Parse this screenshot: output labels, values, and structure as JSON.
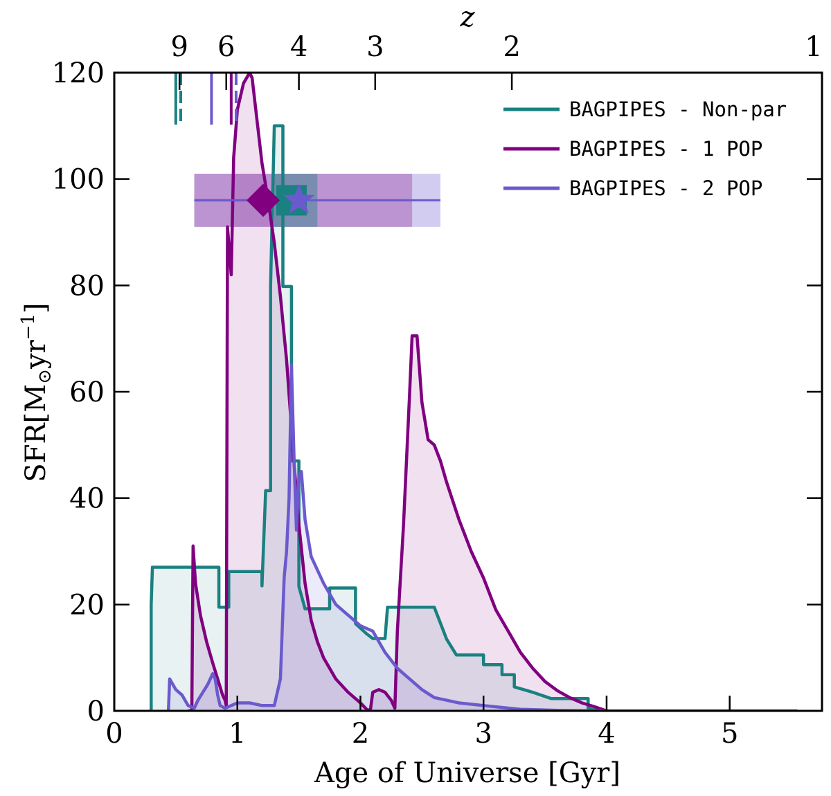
{
  "chart_data": {
    "type": "line",
    "xlabel": "Age of Universe [Gyr]",
    "ylabel": "SFR",
    "ylabel_unit_open": "[M",
    "ylabel_unit_sub": "⊙",
    "ylabel_unit_mid": "yr",
    "ylabel_unit_sup": "−1",
    "ylabel_unit_close": "]",
    "top_axis_label": "z",
    "xlim": [
      0,
      5.75
    ],
    "ylim": [
      0,
      120
    ],
    "x_ticks": [
      "0",
      "1",
      "2",
      "3",
      "4",
      "5"
    ],
    "x_tick_values": [
      0,
      1,
      2,
      3,
      4,
      5
    ],
    "y_ticks": [
      "0",
      "20",
      "40",
      "60",
      "80",
      "100",
      "120"
    ],
    "y_tick_values": [
      0,
      20,
      40,
      60,
      80,
      100,
      120
    ],
    "top_ticks": [
      {
        "label": "9",
        "age": 0.53
      },
      {
        "label": "6",
        "age": 0.91
      },
      {
        "label": "4",
        "age": 1.5
      },
      {
        "label": "3",
        "age": 2.12
      },
      {
        "label": "2",
        "age": 3.23
      },
      {
        "label": "1",
        "age": 5.75
      }
    ],
    "colors": {
      "nonpar": "#1a8080",
      "pop1": "#800080",
      "pop2": "#6a5acd"
    },
    "series": [
      {
        "name": "BAGPIPES - Non-par",
        "key": "nonpar",
        "style": "step",
        "points": [
          [
            0.3,
            0
          ],
          [
            0.3,
            20
          ],
          [
            0.31,
            27
          ],
          [
            0.85,
            27
          ],
          [
            0.85,
            19.5
          ],
          [
            0.93,
            19.5
          ],
          [
            0.93,
            26.2
          ],
          [
            1.2,
            26.2
          ],
          [
            1.2,
            23.5
          ],
          [
            1.23,
            41.4
          ],
          [
            1.27,
            41.4
          ],
          [
            1.27,
            79.8
          ],
          [
            1.3,
            110
          ],
          [
            1.37,
            110
          ],
          [
            1.37,
            79.8
          ],
          [
            1.44,
            79.8
          ],
          [
            1.44,
            47
          ],
          [
            1.5,
            47
          ],
          [
            1.5,
            23.4
          ],
          [
            1.55,
            19.2
          ],
          [
            1.75,
            19.2
          ],
          [
            1.75,
            23.1
          ],
          [
            1.96,
            23.1
          ],
          [
            1.96,
            16.4
          ],
          [
            2.05,
            14.5
          ],
          [
            2.1,
            13.6
          ],
          [
            2.2,
            13.6
          ],
          [
            2.22,
            19.5
          ],
          [
            2.6,
            19.5
          ],
          [
            2.7,
            13.5
          ],
          [
            2.78,
            10.5
          ],
          [
            3.0,
            10.5
          ],
          [
            3.0,
            8.7
          ],
          [
            3.15,
            8.7
          ],
          [
            3.15,
            6.8
          ],
          [
            3.25,
            6.8
          ],
          [
            3.25,
            4.5
          ],
          [
            3.4,
            3.5
          ],
          [
            3.55,
            2.3
          ],
          [
            3.7,
            2.3
          ],
          [
            3.85,
            2.3
          ],
          [
            3.85,
            0.5
          ],
          [
            3.9,
            0.2
          ],
          [
            4.0,
            0
          ]
        ]
      },
      {
        "name": "BAGPIPES - 1 POP",
        "key": "pop1",
        "style": "line",
        "points": [
          [
            0.6,
            0
          ],
          [
            0.63,
            0
          ],
          [
            0.64,
            31
          ],
          [
            0.66,
            24
          ],
          [
            0.7,
            18
          ],
          [
            0.75,
            13
          ],
          [
            0.8,
            9
          ],
          [
            0.84,
            6
          ],
          [
            0.88,
            3
          ],
          [
            0.9,
            2
          ],
          [
            0.91,
            1
          ],
          [
            0.92,
            91
          ],
          [
            0.95,
            82
          ],
          [
            0.97,
            104
          ],
          [
            1.0,
            113
          ],
          [
            1.05,
            118
          ],
          [
            1.1,
            120
          ],
          [
            1.12,
            119
          ],
          [
            1.15,
            113
          ],
          [
            1.2,
            103
          ],
          [
            1.25,
            96
          ],
          [
            1.3,
            88
          ],
          [
            1.35,
            78
          ],
          [
            1.4,
            66
          ],
          [
            1.45,
            50
          ],
          [
            1.5,
            35
          ],
          [
            1.55,
            24
          ],
          [
            1.6,
            17
          ],
          [
            1.65,
            13
          ],
          [
            1.7,
            10
          ],
          [
            1.8,
            6
          ],
          [
            1.9,
            3.5
          ],
          [
            2.0,
            1.5
          ],
          [
            2.05,
            0.3
          ],
          [
            2.08,
            0
          ],
          [
            2.1,
            3.5
          ],
          [
            2.15,
            4
          ],
          [
            2.2,
            3.5
          ],
          [
            2.25,
            2
          ],
          [
            2.28,
            0.5
          ],
          [
            2.3,
            15
          ],
          [
            2.35,
            35
          ],
          [
            2.4,
            60
          ],
          [
            2.42,
            70.5
          ],
          [
            2.46,
            70.5
          ],
          [
            2.5,
            58
          ],
          [
            2.55,
            51
          ],
          [
            2.6,
            50
          ],
          [
            2.65,
            47
          ],
          [
            2.7,
            43
          ],
          [
            2.8,
            36
          ],
          [
            2.9,
            30
          ],
          [
            3.0,
            25
          ],
          [
            3.1,
            19
          ],
          [
            3.2,
            15
          ],
          [
            3.3,
            11
          ],
          [
            3.4,
            8
          ],
          [
            3.5,
            5.5
          ],
          [
            3.6,
            3.8
          ],
          [
            3.7,
            2.5
          ],
          [
            3.8,
            1.5
          ],
          [
            3.9,
            0.8
          ],
          [
            4.0,
            0
          ]
        ]
      },
      {
        "name": "BAGPIPES - 2 POP",
        "key": "pop2",
        "style": "line",
        "points": [
          [
            0.44,
            0
          ],
          [
            0.45,
            6
          ],
          [
            0.5,
            4
          ],
          [
            0.55,
            3
          ],
          [
            0.6,
            1
          ],
          [
            0.65,
            0.5
          ],
          [
            0.68,
            2
          ],
          [
            0.72,
            3.5
          ],
          [
            0.76,
            5
          ],
          [
            0.8,
            7
          ],
          [
            0.82,
            6
          ],
          [
            0.84,
            3
          ],
          [
            0.86,
            1
          ],
          [
            0.9,
            0.5
          ],
          [
            1.0,
            1.5
          ],
          [
            1.1,
            1.5
          ],
          [
            1.2,
            1
          ],
          [
            1.3,
            1
          ],
          [
            1.35,
            6
          ],
          [
            1.38,
            25
          ],
          [
            1.4,
            30
          ],
          [
            1.42,
            40
          ],
          [
            1.44,
            65
          ],
          [
            1.46,
            48
          ],
          [
            1.48,
            34
          ],
          [
            1.5,
            44
          ],
          [
            1.52,
            45
          ],
          [
            1.55,
            36
          ],
          [
            1.6,
            29
          ],
          [
            1.7,
            24
          ],
          [
            1.8,
            20
          ],
          [
            1.9,
            18
          ],
          [
            2.0,
            16
          ],
          [
            2.1,
            15
          ],
          [
            2.2,
            11
          ],
          [
            2.3,
            8
          ],
          [
            2.4,
            6
          ],
          [
            2.5,
            4
          ],
          [
            2.6,
            2.5
          ],
          [
            2.8,
            1.5
          ],
          [
            3.0,
            1
          ],
          [
            3.3,
            0.3
          ],
          [
            3.6,
            0.1
          ],
          [
            4.0,
            0
          ],
          [
            5.55,
            0
          ]
        ]
      }
    ],
    "summary_points": {
      "y": 96,
      "band_y": [
        91,
        101
      ],
      "nonpar": {
        "x": 1.44,
        "marker": "square",
        "band": [
          1.3,
          1.65
        ]
      },
      "pop1": {
        "x": 1.21,
        "marker": "diamond",
        "band": [
          0.65,
          2.42
        ]
      },
      "pop2": {
        "x": 1.5,
        "marker": "star",
        "band": [
          0.65,
          2.65
        ]
      }
    },
    "formation_markers": [
      {
        "key": "nonpar",
        "age": 0.5,
        "dash": false
      },
      {
        "key": "nonpar",
        "age": 0.54,
        "dash": true
      },
      {
        "key": "pop2",
        "age": 0.79,
        "dash": false
      },
      {
        "key": "pop1",
        "age": 0.95,
        "dash": false
      },
      {
        "key": "pop2",
        "age": 0.99,
        "dash": true
      }
    ],
    "legend_position": "top-right"
  }
}
